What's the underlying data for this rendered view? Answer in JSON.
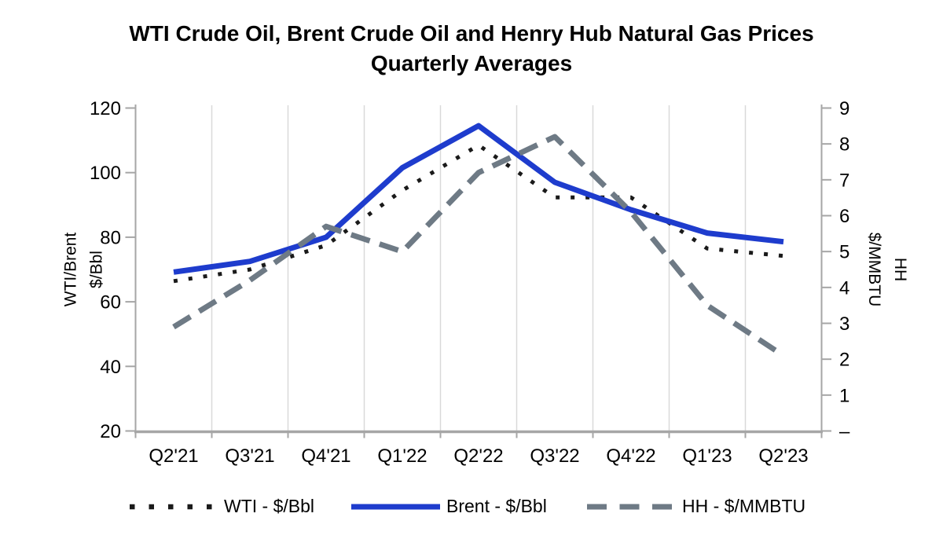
{
  "title": {
    "line1": "WTI Crude Oil, Brent Crude Oil and Henry Hub Natural Gas Prices",
    "line2": "Quarterly Averages"
  },
  "left_axis": {
    "label_line1": "WTI/Brent",
    "label_line2": "$/Bbl",
    "tick_labels": [
      "120",
      "100",
      "80",
      "60",
      "40",
      "20"
    ]
  },
  "right_axis": {
    "label_line1": "HH",
    "label_line2": "$/MMBTU",
    "tick_labels": [
      "9",
      "8",
      "7",
      "6",
      "5",
      "4",
      "3",
      "2",
      "1",
      "–"
    ]
  },
  "legend": {
    "items": [
      {
        "label": "WTI - $/Bbl",
        "style": "dotted",
        "color": "#1a1a1a"
      },
      {
        "label": "Brent - $/Bbl",
        "style": "solid",
        "color": "#1e3ccd"
      },
      {
        "label": "HH - $/MMBTU",
        "style": "dashed",
        "color": "#6e7a85"
      }
    ]
  },
  "colors": {
    "wti": "#1a1a1a",
    "brent": "#1e3ccd",
    "hh": "#6e7a85",
    "gridline": "#d9d9d9",
    "axis": "#a6a6a6"
  },
  "chart_data": {
    "type": "line",
    "title": "WTI Crude Oil, Brent Crude Oil and Henry Hub Natural Gas Prices",
    "subtitle": "Quarterly Averages",
    "ylabel_left": "WTI/Brent $/Bbl",
    "ylabel_right": "HH $/MMBTU",
    "categories": [
      "Q2'21",
      "Q3'21",
      "Q4'21",
      "Q1'22",
      "Q2'22",
      "Q3'22",
      "Q4'22",
      "Q1'23",
      "Q2'23"
    ],
    "series": [
      {
        "name": "WTI - $/Bbl",
        "axis": "left",
        "unit": "$/Bbl",
        "line_style": "dotted",
        "color": "#1a1a1a",
        "values": [
          66.4,
          70.0,
          77.5,
          94.5,
          108.5,
          92.3,
          92.3,
          76.5,
          74.2
        ]
      },
      {
        "name": "Brent - $/Bbl",
        "axis": "left",
        "unit": "$/Bbl",
        "line_style": "solid",
        "color": "#1e3ccd",
        "values": [
          69.2,
          72.5,
          80.0,
          101.5,
          114.5,
          97.0,
          88.5,
          81.3,
          78.6
        ]
      },
      {
        "name": "HH - $/MMBTU",
        "axis": "right",
        "unit": "$/MMBTU",
        "line_style": "dashed",
        "color": "#6e7a85",
        "values": [
          2.9,
          4.2,
          5.7,
          5.0,
          7.2,
          8.2,
          6.1,
          3.5,
          2.1
        ]
      }
    ],
    "left_ylim": [
      20,
      120
    ],
    "left_yticks": [
      120,
      100,
      80,
      60,
      40,
      20
    ],
    "right_ylim": [
      0,
      9
    ],
    "right_yticks": [
      9,
      8,
      7,
      6,
      5,
      4,
      3,
      2,
      1,
      0
    ],
    "grid": "vertical-only",
    "legend_position": "bottom"
  }
}
